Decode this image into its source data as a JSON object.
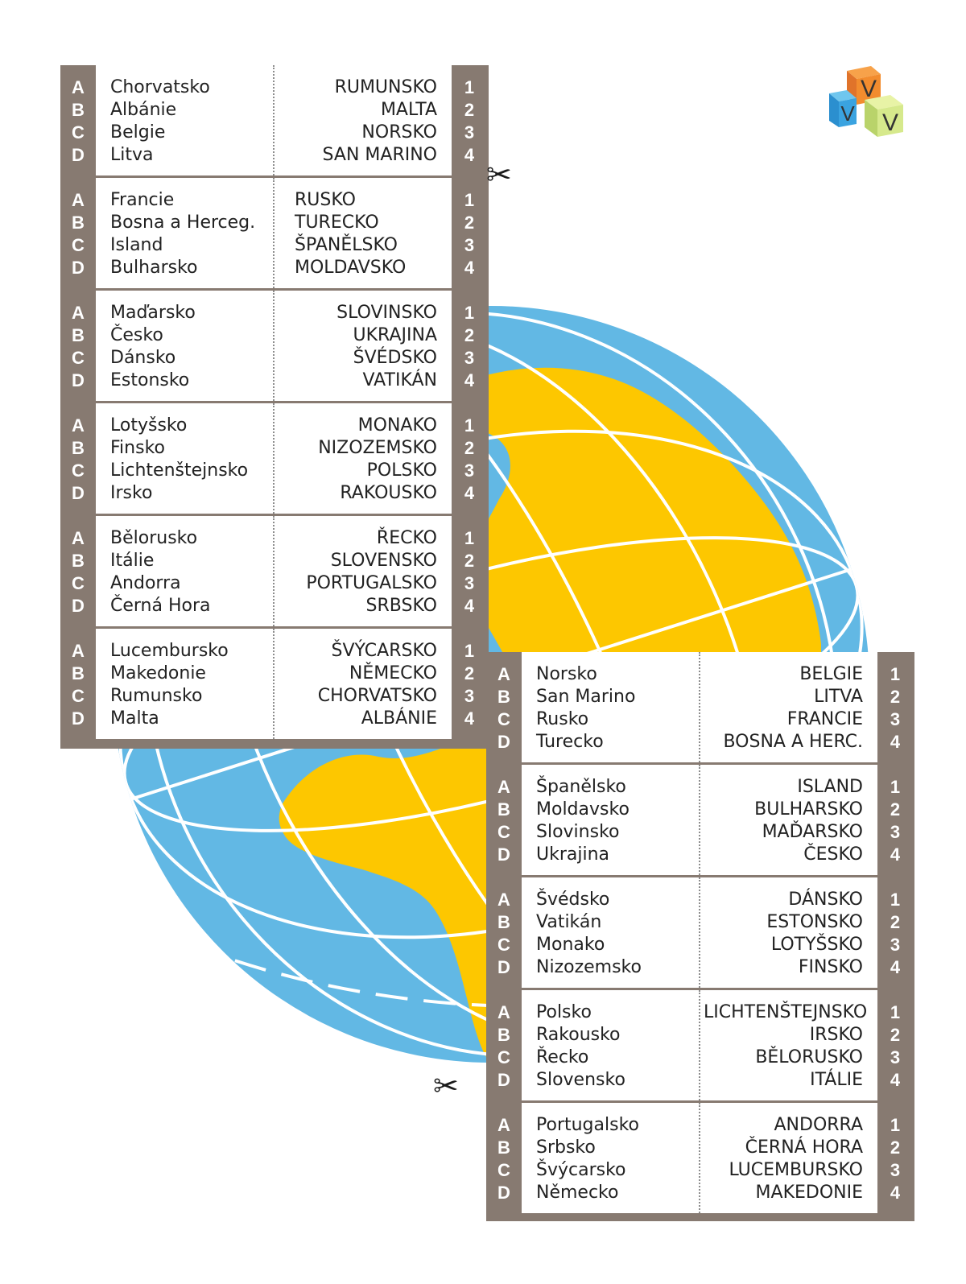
{
  "colors": {
    "panel": "#877a71",
    "ocean": "#62b8e4",
    "land": "#fdc700",
    "grid": "#ffffff"
  },
  "icons": {
    "scissors_glyph": "✂",
    "logo_letter": "V"
  },
  "letters": [
    "A",
    "B",
    "C",
    "D"
  ],
  "numbers": [
    "1",
    "2",
    "3",
    "4"
  ],
  "left_cards": [
    {
      "names": [
        "Chorvatsko",
        "Albánie",
        "Belgie",
        "Litva"
      ],
      "caps": [
        "RUMUNSKO",
        "MALTA",
        "NORSKO",
        "SAN MARINO"
      ],
      "align": "right"
    },
    {
      "names": [
        "Francie",
        "Bosna a Herceg.",
        "Island",
        "Bulharsko"
      ],
      "caps": [
        "RUSKO",
        "TURECKO",
        "ŠPANĚLSKO",
        "MOLDAVSKO"
      ],
      "align": "left"
    },
    {
      "names": [
        "Maďarsko",
        "Česko",
        "Dánsko",
        "Estonsko"
      ],
      "caps": [
        "SLOVINSKO",
        "UKRAJINA",
        "ŠVÉDSKO",
        "VATIKÁN"
      ],
      "align": "right"
    },
    {
      "names": [
        "Lotyšsko",
        "Finsko",
        "Lichtenštejnsko",
        "Irsko"
      ],
      "caps": [
        "MONAKO",
        "NIZOZEMSKO",
        "POLSKO",
        "RAKOUSKO"
      ],
      "align": "right"
    },
    {
      "names": [
        "Bělorusko",
        "Itálie",
        "Andorra",
        "Černá Hora"
      ],
      "caps": [
        "ŘECKO",
        "SLOVENSKO",
        "PORTUGALSKO",
        "SRBSKO"
      ],
      "align": "right"
    },
    {
      "names": [
        "Lucembursko",
        "Makedonie",
        "Rumunsko",
        "Malta"
      ],
      "caps": [
        "ŠVÝCARSKO",
        "NĚMECKO",
        "CHORVATSKO",
        "ALBÁNIE"
      ],
      "align": "right"
    }
  ],
  "right_cards": [
    {
      "names": [
        "Norsko",
        "San Marino",
        "Rusko",
        "Turecko"
      ],
      "caps": [
        "BELGIE",
        "LITVA",
        "FRANCIE",
        "BOSNA A HERC."
      ],
      "align": "right"
    },
    {
      "names": [
        "Španělsko",
        "Moldavsko",
        "Slovinsko",
        "Ukrajina"
      ],
      "caps": [
        "ISLAND",
        "BULHARSKO",
        "MAĎARSKO",
        "ČESKO"
      ],
      "align": "right"
    },
    {
      "names": [
        "Švédsko",
        "Vatikán",
        "Monako",
        "Nizozemsko"
      ],
      "caps": [
        "DÁNSKO",
        "ESTONSKO",
        "LOTYŠSKO",
        "FINSKO"
      ],
      "align": "right"
    },
    {
      "names": [
        "Polsko",
        "Rakousko",
        "Řecko",
        "Slovensko"
      ],
      "caps": [
        "LICHTENŠTEJNSKO",
        "IRSKO",
        "BĚLORUSKO",
        "ITÁLIE"
      ],
      "align": "right"
    },
    {
      "names": [
        "Portugalsko",
        "Srbsko",
        "Švýcarsko",
        "Německo"
      ],
      "caps": [
        "ANDORRA",
        "ČERNÁ HORA",
        "LUCEMBURSKO",
        "MAKEDONIE"
      ],
      "align": "right"
    }
  ]
}
